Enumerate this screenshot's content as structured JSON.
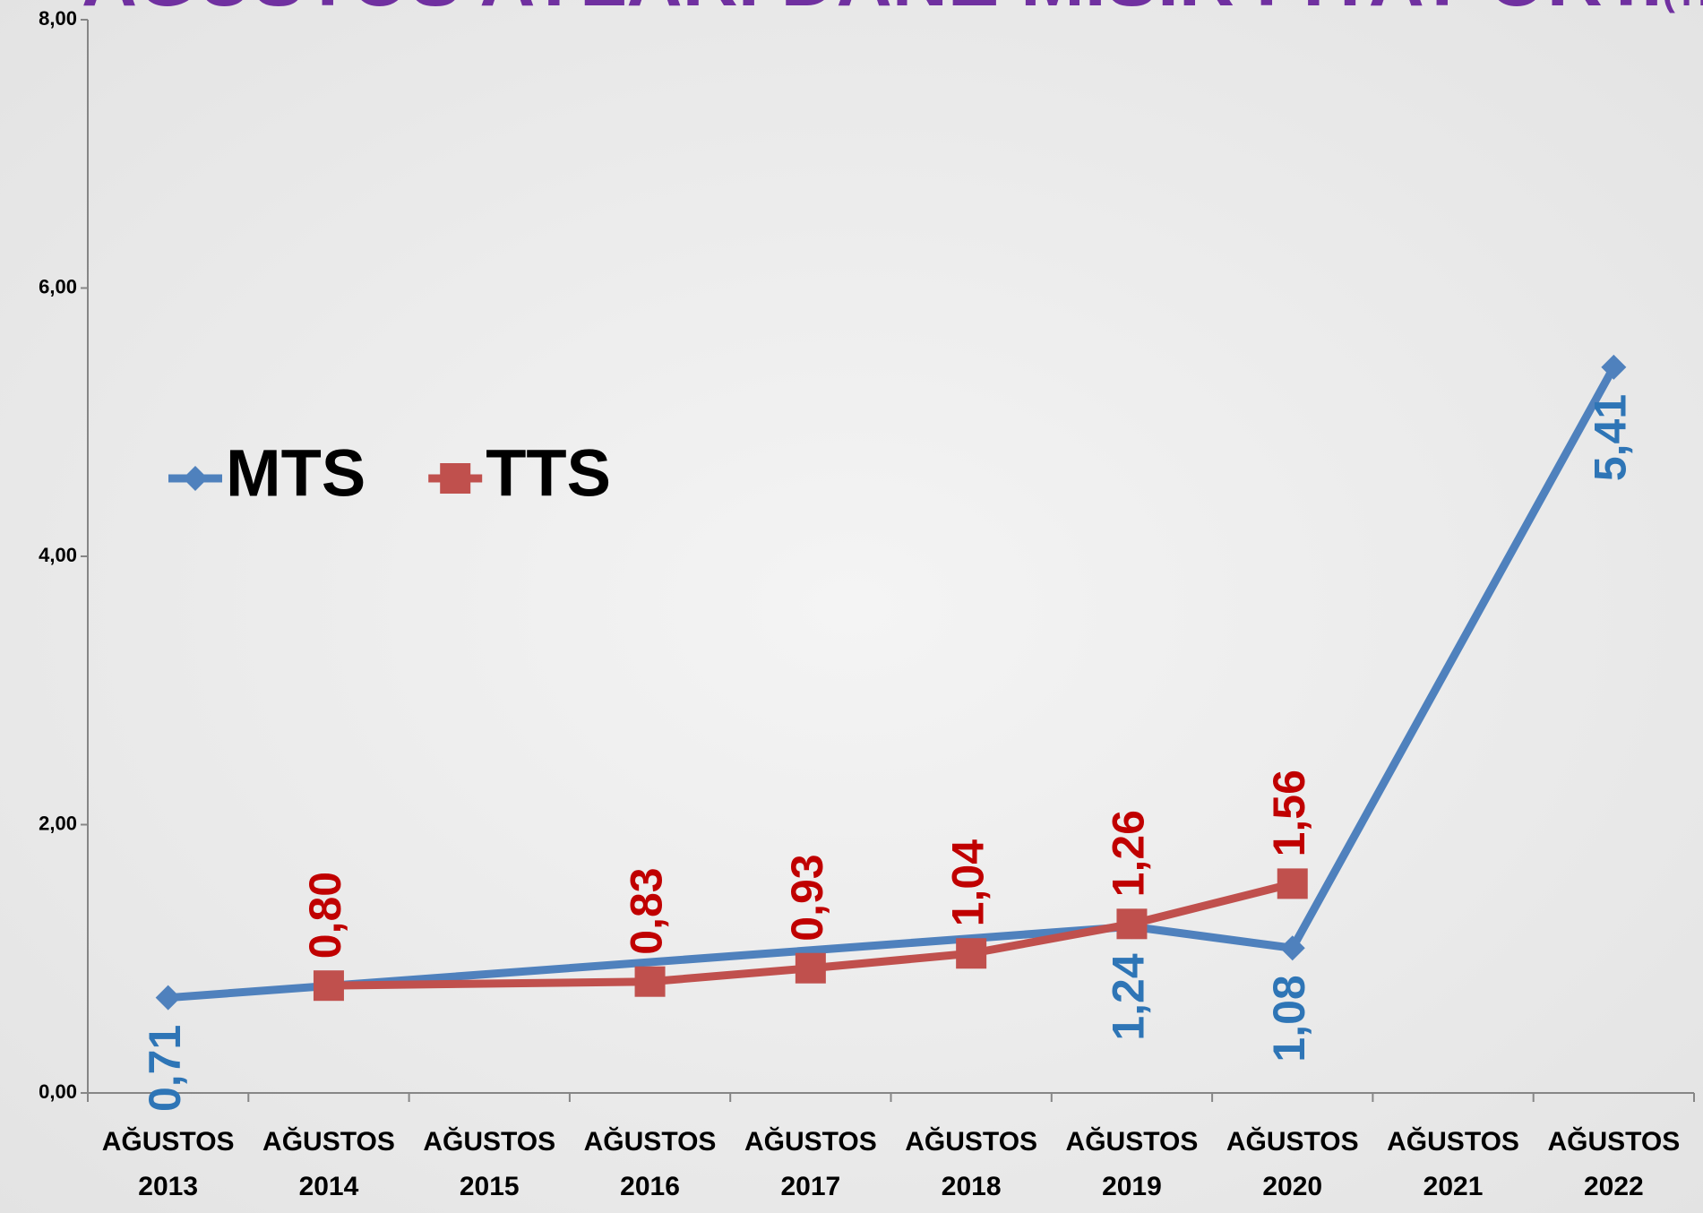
{
  "chart_data": {
    "type": "line",
    "title": "AĞUSTOS AYLARI DANE MISIR FİYAT ORT.",
    "subtitle": "(TL)",
    "categories": [
      [
        "AĞUSTOS",
        "2013"
      ],
      [
        "AĞUSTOS",
        "2014"
      ],
      [
        "AĞUSTOS",
        "2015"
      ],
      [
        "AĞUSTOS",
        "2016"
      ],
      [
        "AĞUSTOS",
        "2017"
      ],
      [
        "AĞUSTOS",
        "2018"
      ],
      [
        "AĞUSTOS",
        "2019"
      ],
      [
        "AĞUSTOS",
        "2020"
      ],
      [
        "AĞUSTOS",
        "2021"
      ],
      [
        "AĞUSTOS",
        "2022"
      ]
    ],
    "series": [
      {
        "name": "MTS",
        "color": "#4f81bd",
        "label_color": "#2e75b6",
        "marker": "diamond",
        "values": [
          0.71,
          null,
          null,
          null,
          null,
          null,
          1.24,
          1.08,
          null,
          5.41
        ],
        "value_labels": [
          "0,71",
          null,
          null,
          null,
          null,
          null,
          "1,24",
          "1,08",
          null,
          "5,41"
        ]
      },
      {
        "name": "TTS",
        "color": "#c0504d",
        "label_color": "#c00000",
        "marker": "square",
        "values": [
          null,
          0.8,
          null,
          0.83,
          0.93,
          1.04,
          1.26,
          1.56,
          null,
          null
        ],
        "value_labels": [
          null,
          "0,80",
          null,
          "0,83",
          "0,93",
          "1,04",
          "1,26",
          "1,56",
          null,
          null
        ]
      }
    ],
    "connect_gaps": true,
    "ylim": [
      0,
      8
    ],
    "yticks": [
      {
        "value": 0,
        "label": "0,00"
      },
      {
        "value": 2,
        "label": "2,00"
      },
      {
        "value": 4,
        "label": "4,00"
      },
      {
        "value": 6,
        "label": "6,00"
      },
      {
        "value": 8,
        "label": "8,00"
      }
    ],
    "grid": false,
    "legend": "left"
  }
}
